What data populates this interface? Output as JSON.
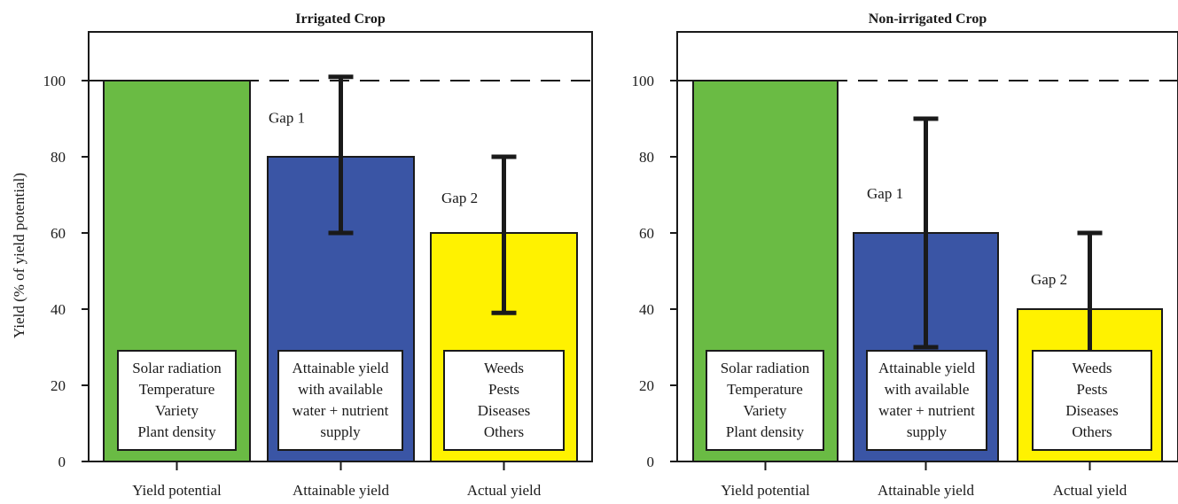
{
  "chart_data": [
    {
      "type": "bar",
      "title": "Irrigated Crop",
      "ylabel": "Yield (% of yield potential)",
      "ylim": [
        0,
        110
      ],
      "yticks": [
        0,
        20,
        40,
        60,
        80,
        100
      ],
      "reference_line": 100,
      "categories": [
        "Yield potential",
        "Attainable yield",
        "Actual yield"
      ],
      "values": [
        100,
        80,
        60
      ],
      "colors": [
        "#6abb44",
        "#3a55a5",
        "#fff200"
      ],
      "error_bars": [
        null,
        [
          60,
          101
        ],
        [
          39,
          80
        ]
      ],
      "gap_labels": [
        null,
        "Gap 1",
        "Gap 2"
      ],
      "box_labels": [
        [
          "Solar radiation",
          "Temperature",
          "Variety",
          "Plant density"
        ],
        [
          "Attainable yield",
          "with available",
          "water + nutrient",
          "supply"
        ],
        [
          "Weeds",
          "Pests",
          "Diseases",
          "Others"
        ]
      ]
    },
    {
      "type": "bar",
      "title": "Non-irrigated Crop",
      "ylabel": "",
      "ylim": [
        0,
        110
      ],
      "yticks": [
        0,
        20,
        40,
        60,
        80,
        100
      ],
      "reference_line": 100,
      "categories": [
        "Yield potential",
        "Attainable yield",
        "Actual yield"
      ],
      "values": [
        100,
        60,
        40
      ],
      "colors": [
        "#6abb44",
        "#3a55a5",
        "#fff200"
      ],
      "error_bars": [
        null,
        [
          30,
          90
        ],
        [
          28,
          60
        ]
      ],
      "gap_labels": [
        null,
        "Gap 1",
        "Gap 2"
      ],
      "box_labels": [
        [
          "Solar radiation",
          "Temperature",
          "Variety",
          "Plant density"
        ],
        [
          "Attainable yield",
          "with available",
          "water + nutrient",
          "supply"
        ],
        [
          "Weeds",
          "Pests",
          "Diseases",
          "Others"
        ]
      ]
    }
  ]
}
